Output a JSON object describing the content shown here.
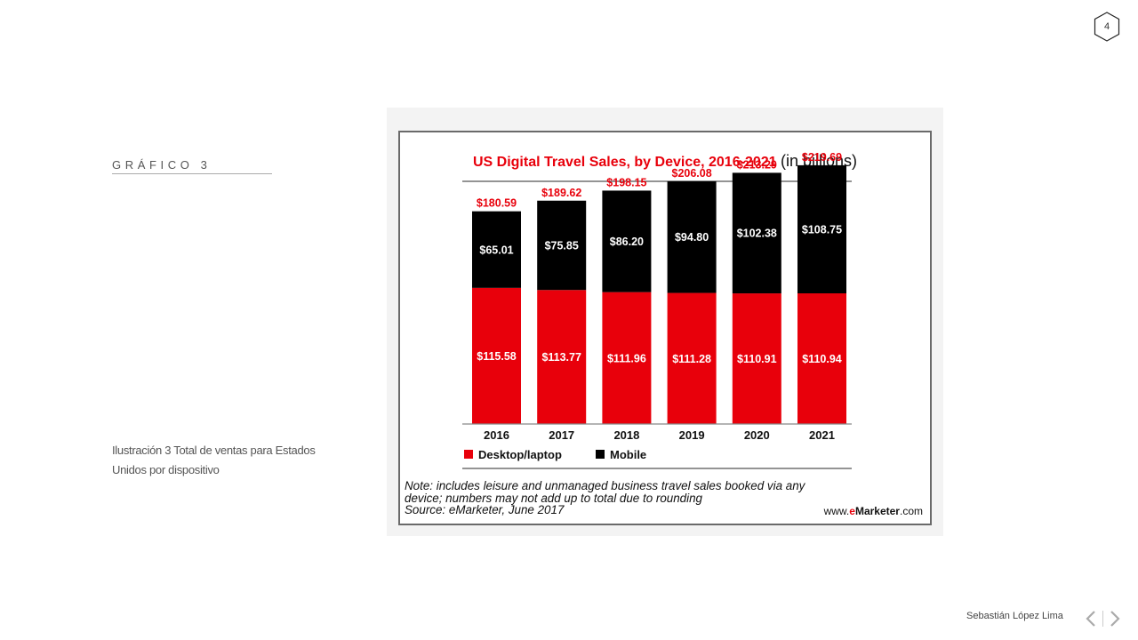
{
  "page": {
    "number": "4",
    "section_label": "GRÁFICO 3",
    "caption": "Ilustración 3  Total de ventas para Estados Unidos por dispositivo",
    "author": "Sebastián López Lima",
    "nav": {
      "prev_icon": "chevron-left-icon",
      "next_icon": "chevron-right-icon"
    }
  },
  "chart_data": {
    "type": "bar",
    "stacked": true,
    "title": "US Digital Travel Sales, by Device, 2016-2021",
    "subtitle": "(in billions)",
    "categories": [
      "2016",
      "2017",
      "2018",
      "2019",
      "2020",
      "2021"
    ],
    "series": [
      {
        "name": "Desktop/laptop",
        "color": "#e8000b",
        "values": [
          115.58,
          113.77,
          111.96,
          111.28,
          110.91,
          110.94
        ],
        "labels": [
          "$115.58",
          "$113.77",
          "$111.96",
          "$111.28",
          "$110.91",
          "$110.94"
        ]
      },
      {
        "name": "Mobile",
        "color": "#000000",
        "values": [
          65.01,
          75.85,
          86.2,
          94.8,
          102.38,
          108.75
        ],
        "labels": [
          "$65.01",
          "$75.85",
          "$86.20",
          "$94.80",
          "$102.38",
          "$108.75"
        ]
      }
    ],
    "totals": [
      180.59,
      189.62,
      198.15,
      206.08,
      213.29,
      219.69
    ],
    "total_labels": [
      "$180.59",
      "$189.62",
      "$198.15",
      "$206.08",
      "$213.29",
      "$219.69"
    ],
    "total_color": "#e8000b",
    "ylim": [
      0,
      220
    ],
    "xlabel": "",
    "ylabel": "",
    "grid": false,
    "legend_position": "bottom-left",
    "note_lines": [
      "Note: includes leisure and unmanaged business travel sales booked via any",
      "device; numbers may not add up to total due to rounding",
      "Source: eMarketer, June 2017"
    ],
    "brand": {
      "prefix": "www.",
      "strong": "Marketer",
      "e": "e",
      "suffix": ".com"
    }
  }
}
